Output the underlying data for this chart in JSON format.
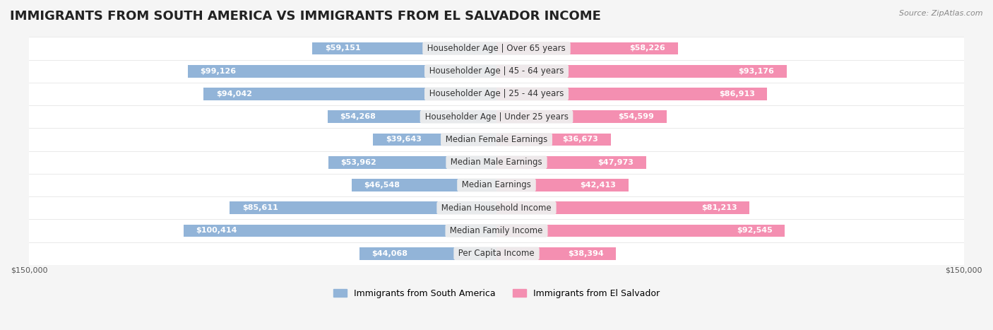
{
  "title": "IMMIGRANTS FROM SOUTH AMERICA VS IMMIGRANTS FROM EL SALVADOR INCOME",
  "source": "Source: ZipAtlas.com",
  "categories": [
    "Per Capita Income",
    "Median Family Income",
    "Median Household Income",
    "Median Earnings",
    "Median Male Earnings",
    "Median Female Earnings",
    "Householder Age | Under 25 years",
    "Householder Age | 25 - 44 years",
    "Householder Age | 45 - 64 years",
    "Householder Age | Over 65 years"
  ],
  "south_america_values": [
    44068,
    100414,
    85611,
    46548,
    53962,
    39643,
    54268,
    94042,
    99126,
    59151
  ],
  "el_salvador_values": [
    38394,
    92545,
    81213,
    42413,
    47973,
    36673,
    54599,
    86913,
    93176,
    58226
  ],
  "south_america_color": "#92b4d8",
  "el_salvador_color": "#f48fb1",
  "south_america_color_dark": "#5b9bd5",
  "el_salvador_color_dark": "#e9548a",
  "bar_height": 0.55,
  "max_value": 150000,
  "bg_color": "#f5f5f5",
  "row_bg_color": "#ffffff",
  "label_bg_color": "#f0f0f0",
  "south_america_label": "Immigrants from South America",
  "el_salvador_label": "Immigrants from El Salvador",
  "title_fontsize": 13,
  "label_fontsize": 8.5,
  "value_fontsize": 8,
  "legend_fontsize": 9
}
